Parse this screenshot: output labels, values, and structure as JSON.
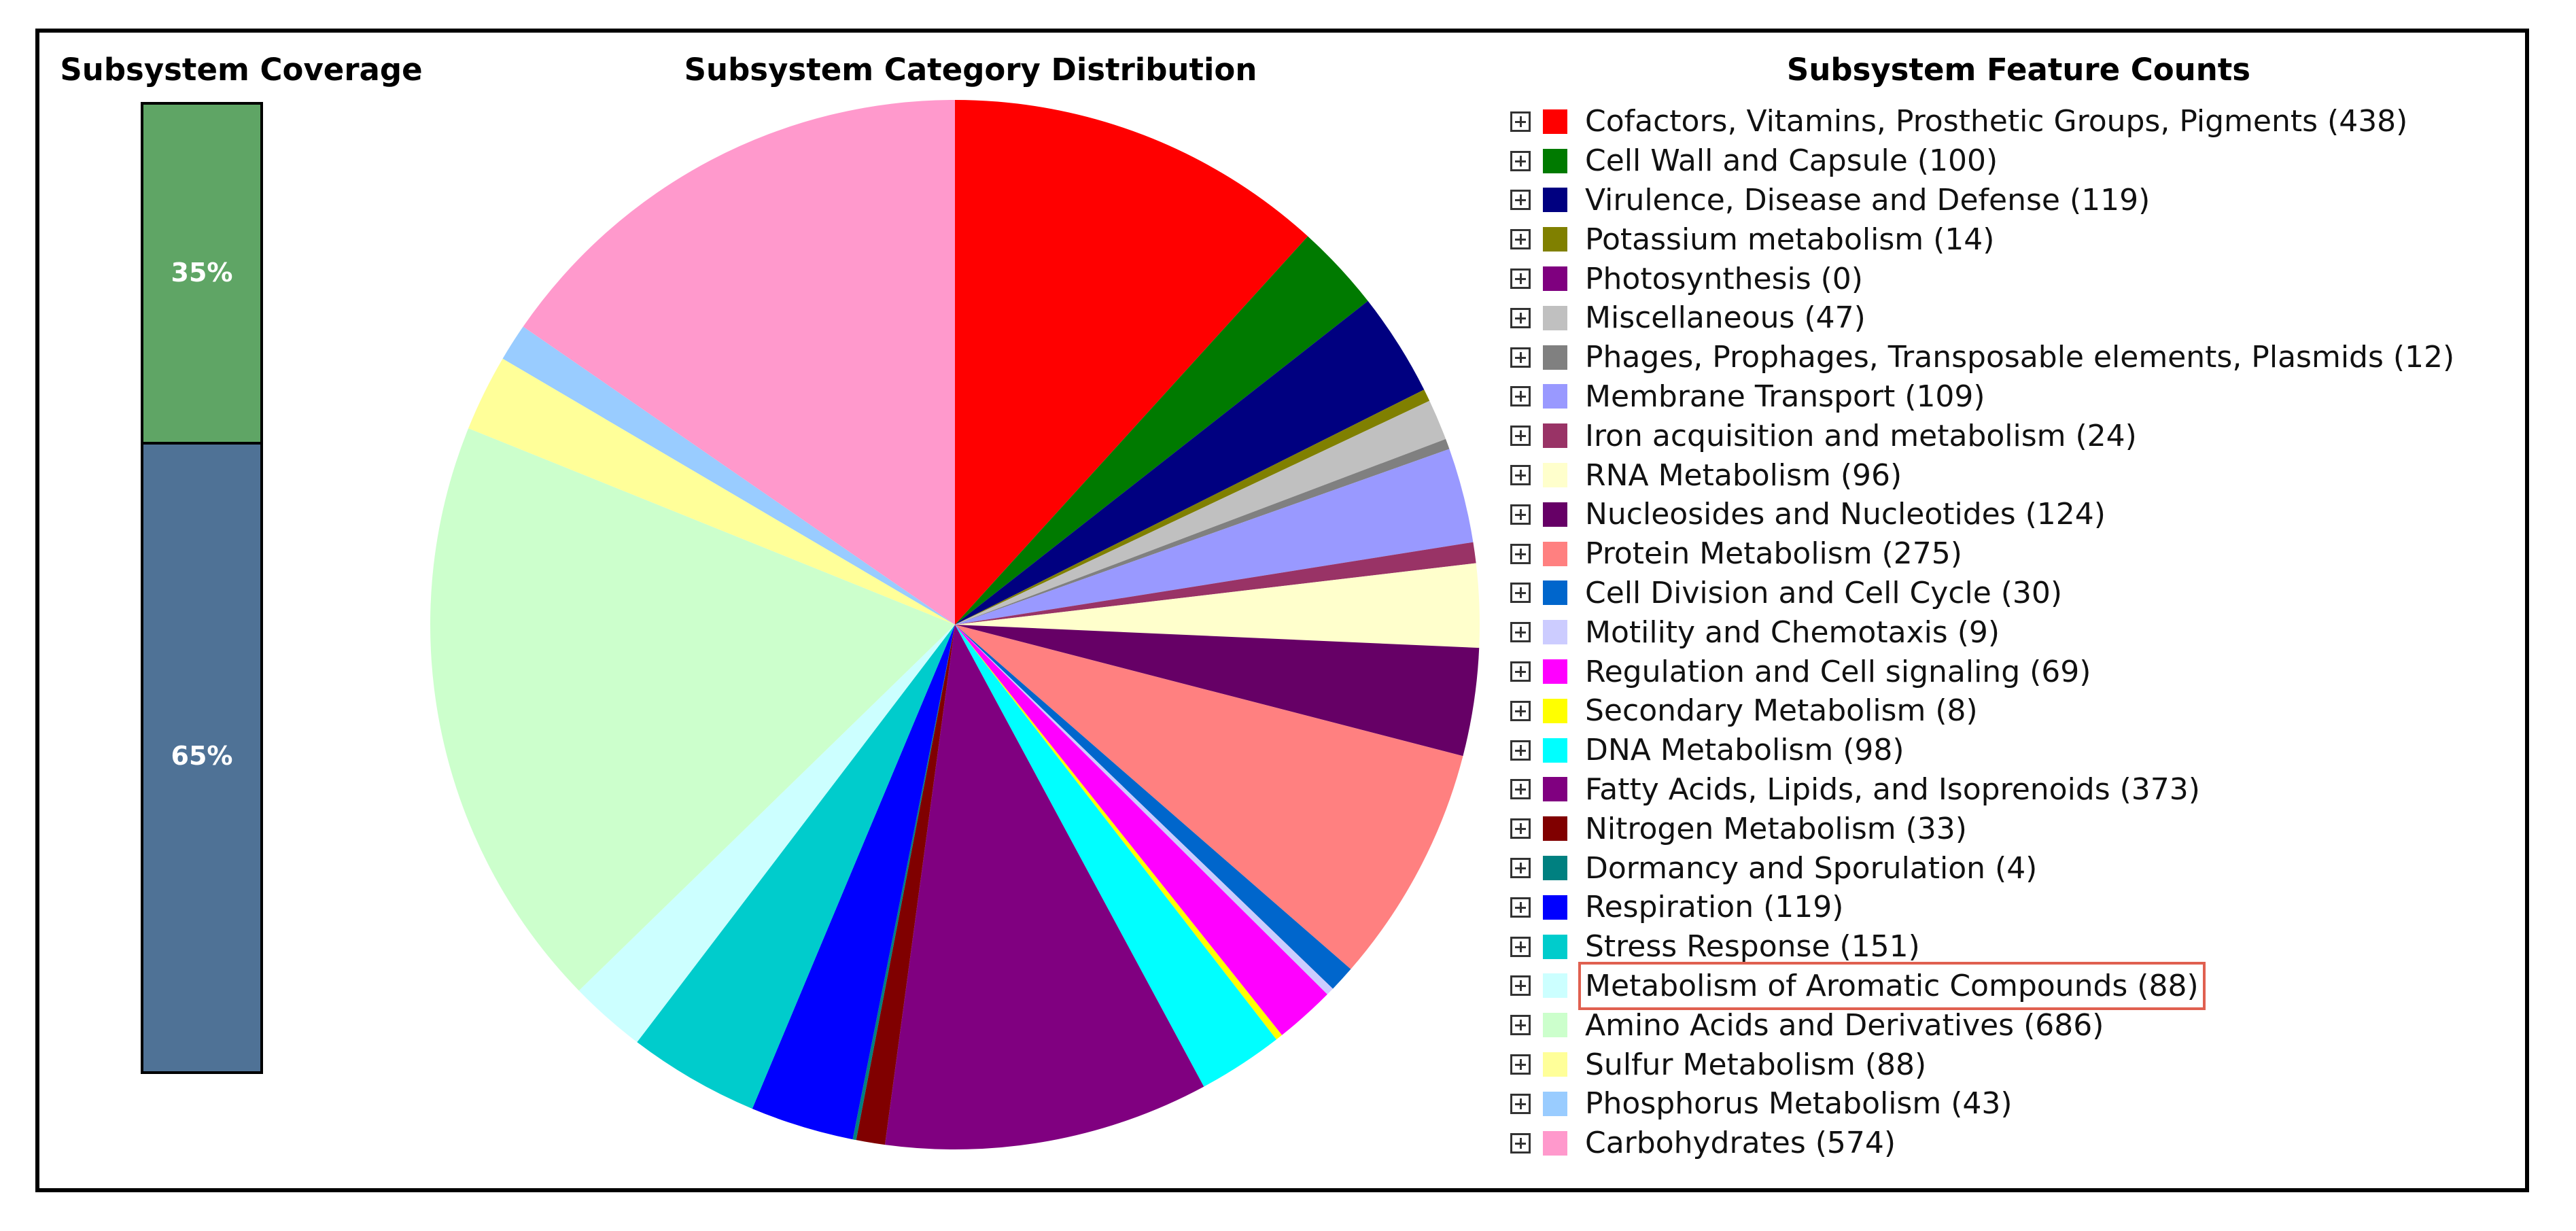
{
  "coverage": {
    "title": "Subsystem Coverage",
    "segments": [
      {
        "label": "35%",
        "fraction": 0.35,
        "color": "#5fa565"
      },
      {
        "label": "65%",
        "fraction": 0.65,
        "color": "#4f7296"
      }
    ]
  },
  "pie_title": "Subsystem Category Distribution",
  "legend_title": "Subsystem Feature Counts",
  "chart_data": {
    "type": "pie",
    "title": "Subsystem Category Distribution",
    "legend_placement": "right",
    "highlighted": "Metabolism of Aromatic Compounds",
    "slices": [
      {
        "name": "Cofactors, Vitamins, Prosthetic Groups, Pigments",
        "value": 438,
        "label": "Cofactors, Vitamins, Prosthetic Groups, Pigments (438)",
        "color": "#ff0000"
      },
      {
        "name": "Cell Wall and Capsule",
        "value": 100,
        "label": "Cell Wall and Capsule (100)",
        "color": "#007a00"
      },
      {
        "name": "Virulence, Disease and Defense",
        "value": 119,
        "label": "Virulence, Disease and Defense (119)",
        "color": "#000080"
      },
      {
        "name": "Potassium metabolism",
        "value": 14,
        "label": "Potassium metabolism (14)",
        "color": "#808000"
      },
      {
        "name": "Photosynthesis",
        "value": 0,
        "label": "Photosynthesis (0)",
        "color": "#7f007f"
      },
      {
        "name": "Miscellaneous",
        "value": 47,
        "label": "Miscellaneous (47)",
        "color": "#c0c0c0"
      },
      {
        "name": "Phages, Prophages, Transposable elements, Plasmids",
        "value": 12,
        "label": "Phages, Prophages, Transposable elements, Plasmids (12)",
        "color": "#808080"
      },
      {
        "name": "Membrane Transport",
        "value": 109,
        "label": "Membrane Transport (109)",
        "color": "#9999ff"
      },
      {
        "name": "Iron acquisition and metabolism",
        "value": 24,
        "label": "Iron acquisition and metabolism (24)",
        "color": "#993366"
      },
      {
        "name": "RNA Metabolism",
        "value": 96,
        "label": "RNA Metabolism (96)",
        "color": "#ffffcc"
      },
      {
        "name": "Nucleosides and Nucleotides",
        "value": 124,
        "label": "Nucleosides and Nucleotides (124)",
        "color": "#660066"
      },
      {
        "name": "Protein Metabolism",
        "value": 275,
        "label": "Protein Metabolism (275)",
        "color": "#ff8080"
      },
      {
        "name": "Cell Division and Cell Cycle",
        "value": 30,
        "label": "Cell Division and Cell Cycle (30)",
        "color": "#0066cc"
      },
      {
        "name": "Motility and Chemotaxis",
        "value": 9,
        "label": "Motility and Chemotaxis (9)",
        "color": "#ccccff"
      },
      {
        "name": "Regulation and Cell signaling",
        "value": 69,
        "label": "Regulation and Cell signaling (69)",
        "color": "#ff00ff"
      },
      {
        "name": "Secondary Metabolism",
        "value": 8,
        "label": "Secondary Metabolism (8)",
        "color": "#ffff00"
      },
      {
        "name": "DNA Metabolism",
        "value": 98,
        "label": "DNA Metabolism (98)",
        "color": "#00ffff"
      },
      {
        "name": "Fatty Acids, Lipids, and Isoprenoids",
        "value": 373,
        "label": "Fatty Acids, Lipids, and Isoprenoids (373)",
        "color": "#800080"
      },
      {
        "name": "Nitrogen Metabolism",
        "value": 33,
        "label": "Nitrogen Metabolism (33)",
        "color": "#800000"
      },
      {
        "name": "Dormancy and Sporulation",
        "value": 4,
        "label": "Dormancy and Sporulation (4)",
        "color": "#008080"
      },
      {
        "name": "Respiration",
        "value": 119,
        "label": "Respiration (119)",
        "color": "#0000ff"
      },
      {
        "name": "Stress Response",
        "value": 151,
        "label": "Stress Response (151)",
        "color": "#00cccc"
      },
      {
        "name": "Metabolism of Aromatic Compounds",
        "value": 88,
        "label": "Metabolism of Aromatic Compounds (88)",
        "color": "#ccffff"
      },
      {
        "name": "Amino Acids and Derivatives",
        "value": 686,
        "label": "Amino Acids and Derivatives (686)",
        "color": "#ccffcc"
      },
      {
        "name": "Sulfur Metabolism",
        "value": 88,
        "label": "Sulfur Metabolism (88)",
        "color": "#ffff99"
      },
      {
        "name": "Phosphorus Metabolism",
        "value": 43,
        "label": "Phosphorus Metabolism (43)",
        "color": "#99ccff"
      },
      {
        "name": "Carbohydrates",
        "value": 574,
        "label": "Carbohydrates (574)",
        "color": "#ff99cc"
      }
    ]
  }
}
